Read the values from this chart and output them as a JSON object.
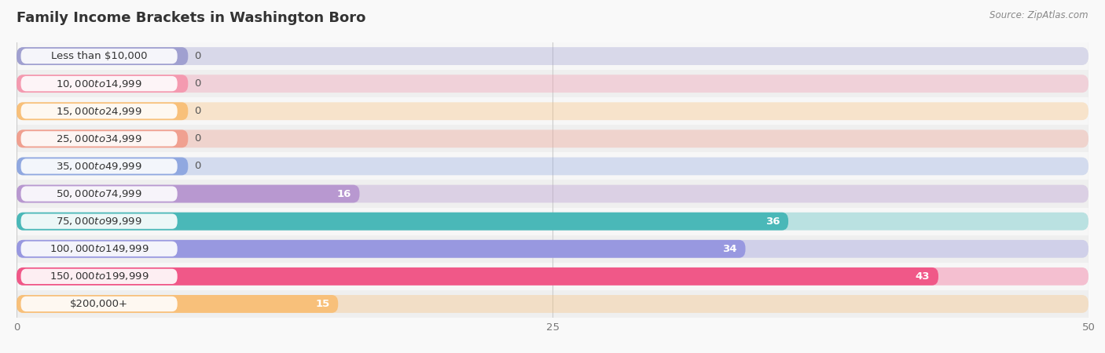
{
  "title": "Family Income Brackets in Washington Boro",
  "source": "Source: ZipAtlas.com",
  "categories": [
    "Less than $10,000",
    "$10,000 to $14,999",
    "$15,000 to $24,999",
    "$25,000 to $34,999",
    "$35,000 to $49,999",
    "$50,000 to $74,999",
    "$75,000 to $99,999",
    "$100,000 to $149,999",
    "$150,000 to $199,999",
    "$200,000+"
  ],
  "values": [
    0,
    0,
    0,
    0,
    0,
    16,
    36,
    34,
    43,
    15
  ],
  "bar_colors": [
    "#a0a0d0",
    "#f49ab0",
    "#f8c07a",
    "#f0a090",
    "#90a8e0",
    "#b898d0",
    "#4ab8b8",
    "#9898e0",
    "#f05888",
    "#f8c07a"
  ],
  "row_colors": [
    "#f7f7f7",
    "#efefef"
  ],
  "xlim": [
    0,
    50
  ],
  "xticks": [
    0,
    25,
    50
  ],
  "background_color": "#f9f9f9",
  "title_fontsize": 13,
  "label_fontsize": 9.5,
  "value_fontsize": 9.5,
  "bar_height": 0.65,
  "figsize": [
    14.06,
    4.5
  ]
}
